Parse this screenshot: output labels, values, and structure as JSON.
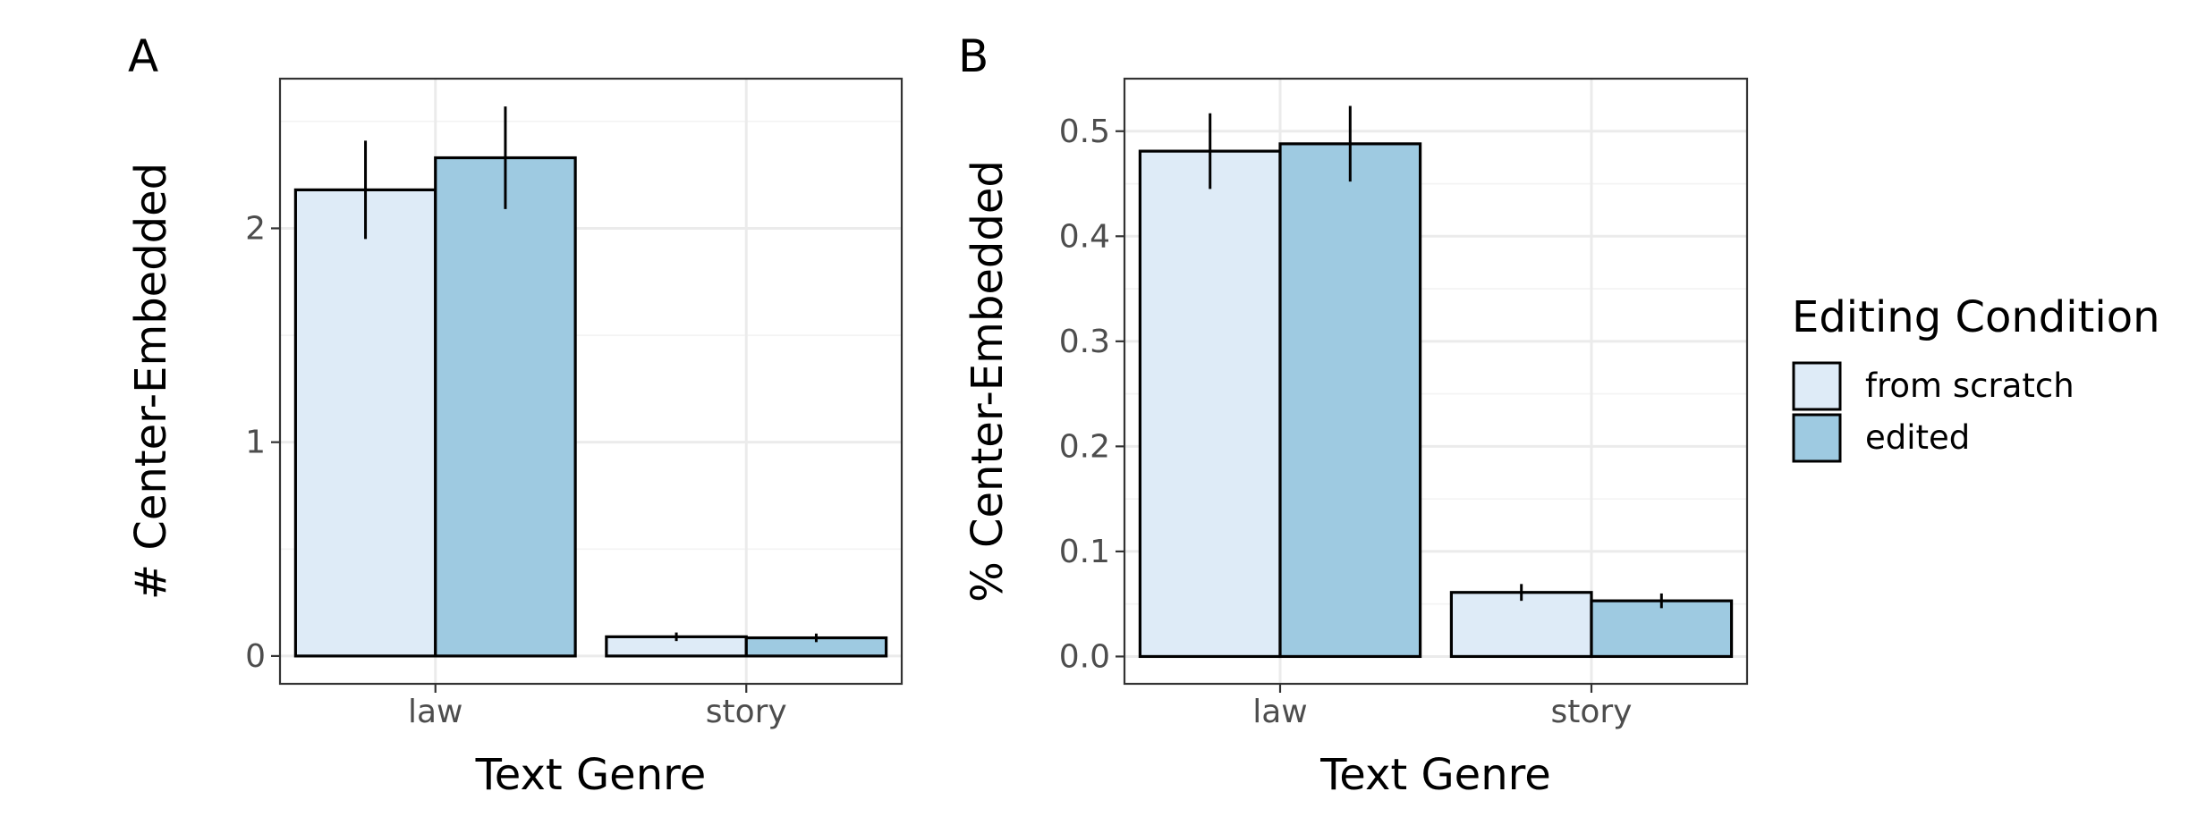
{
  "chart_data": [
    {
      "type": "bar",
      "panel": "A",
      "categories": [
        "law",
        "story"
      ],
      "series": [
        {
          "name": "from scratch",
          "values": [
            2.18,
            0.09
          ],
          "errors": [
            [
              1.95,
              2.41
            ],
            [
              0.07,
              0.11
            ]
          ]
        },
        {
          "name": "edited",
          "values": [
            2.33,
            0.085
          ],
          "errors": [
            [
              2.09,
              2.57
            ],
            [
              0.065,
              0.105
            ]
          ]
        }
      ],
      "xlabel": "Text Genre",
      "ylabel": "# Center-Embedded",
      "ylim": [
        -0.13,
        2.7
      ],
      "yticks": [
        "0",
        "1",
        "2"
      ],
      "ytick_values": [
        0,
        1,
        2
      ],
      "grid": true
    },
    {
      "type": "bar",
      "panel": "B",
      "categories": [
        "law",
        "story"
      ],
      "series": [
        {
          "name": "from scratch",
          "values": [
            0.481,
            0.061
          ],
          "errors": [
            [
              0.445,
              0.517
            ],
            [
              0.053,
              0.069
            ]
          ]
        },
        {
          "name": "edited",
          "values": [
            0.488,
            0.053
          ],
          "errors": [
            [
              0.452,
              0.524
            ],
            [
              0.046,
              0.06
            ]
          ]
        }
      ],
      "xlabel": "Text Genre",
      "ylabel": "% Center-Embedded",
      "ylim": [
        -0.026,
        0.55
      ],
      "yticks": [
        "0.0",
        "0.1",
        "0.2",
        "0.3",
        "0.4",
        "0.5"
      ],
      "ytick_values": [
        0,
        0.1,
        0.2,
        0.3,
        0.4,
        0.5
      ],
      "grid": true
    }
  ],
  "legend": {
    "title": "Editing Condition",
    "placement": "right",
    "items": [
      {
        "label": "from scratch",
        "color": "#deebf7"
      },
      {
        "label": "edited",
        "color": "#9ecae1"
      }
    ]
  },
  "series_colors": [
    "#deebf7",
    "#9ecae1"
  ]
}
